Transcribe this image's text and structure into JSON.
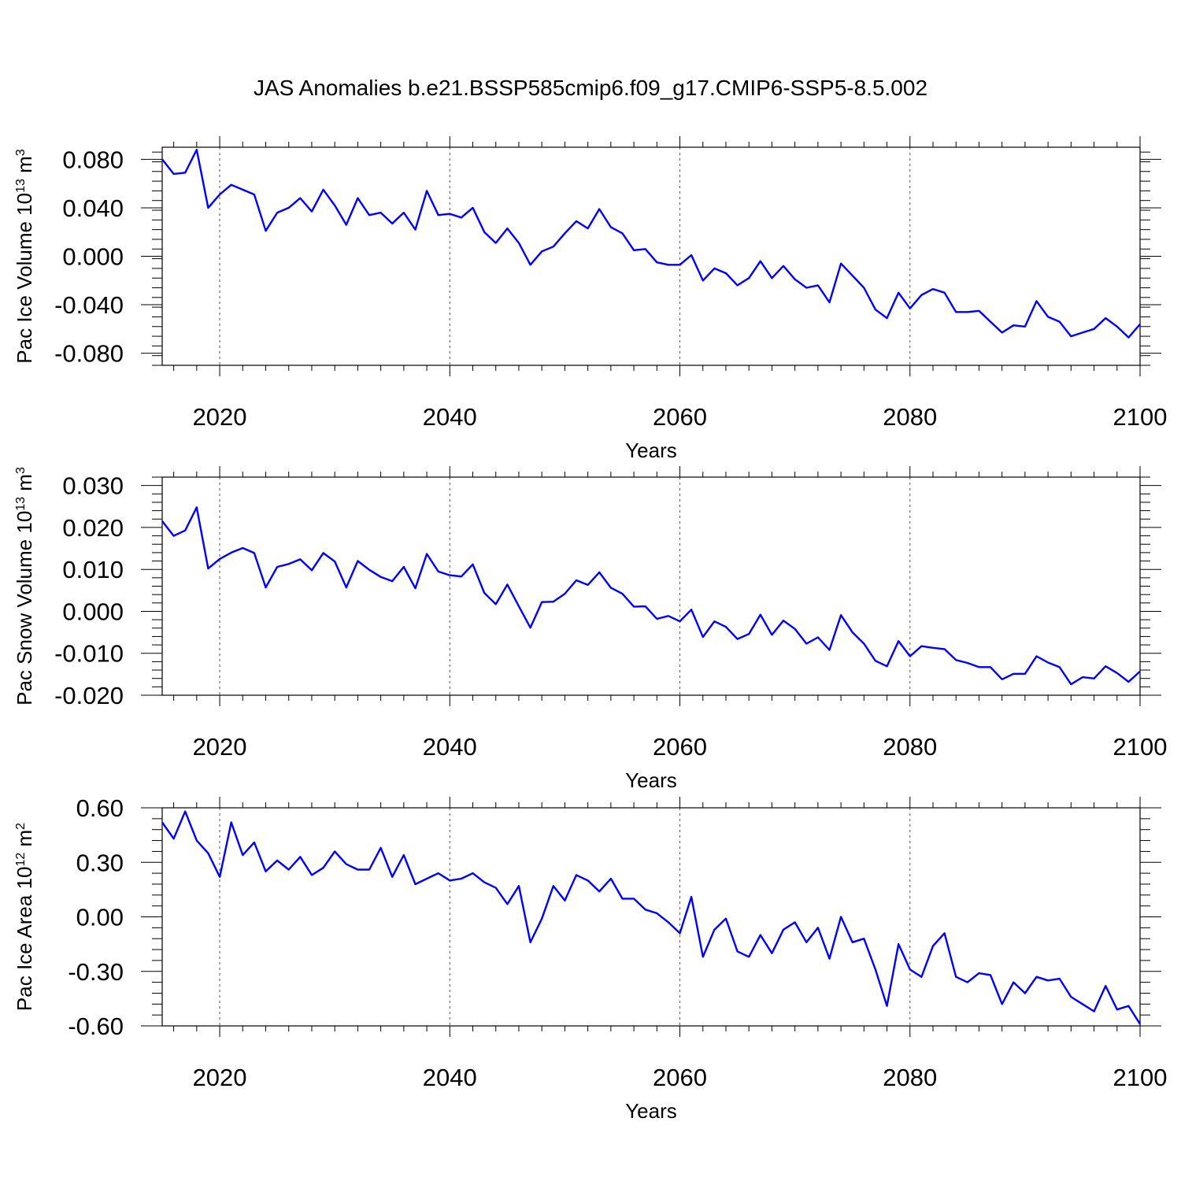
{
  "title": "JAS Anomalies b.e21.BSSP585cmip6.f09_g17.CMIP6-SSP5-8.5.002",
  "line_color": "#0000ff",
  "chart_data": [
    {
      "type": "line",
      "ylabel": {
        "text": "Pac Ice Volume 10",
        "sup": "13",
        "unit": " m",
        "unitsup": "3"
      },
      "xlabel": "Years",
      "xlim": [
        2015,
        2100
      ],
      "ylim": [
        -0.09,
        0.09
      ],
      "yticks": [
        -0.08,
        -0.04,
        0.0,
        0.04,
        0.08
      ],
      "ytick_labels": [
        "-0.080",
        "-0.040",
        "0.000",
        "0.040",
        "0.080"
      ],
      "xticks": [
        2020,
        2040,
        2060,
        2080,
        2100
      ],
      "xtick_labels": [
        "2020",
        "2040",
        "2060",
        "2080",
        "2100"
      ],
      "x_start": 2015,
      "values": [
        0.08,
        0.068,
        0.069,
        0.088,
        0.04,
        0.051,
        0.059,
        0.055,
        0.051,
        0.021,
        0.036,
        0.04,
        0.048,
        0.037,
        0.055,
        0.042,
        0.026,
        0.048,
        0.034,
        0.036,
        0.027,
        0.036,
        0.022,
        0.054,
        0.034,
        0.035,
        0.032,
        0.04,
        0.02,
        0.011,
        0.023,
        0.011,
        -0.007,
        0.004,
        0.008,
        0.019,
        0.029,
        0.023,
        0.039,
        0.024,
        0.019,
        0.005,
        0.006,
        -0.005,
        -0.007,
        -0.007,
        0.001,
        -0.02,
        -0.01,
        -0.014,
        -0.024,
        -0.018,
        -0.004,
        -0.018,
        -0.008,
        -0.019,
        -0.026,
        -0.024,
        -0.038,
        -0.006,
        -0.016,
        -0.026,
        -0.044,
        -0.051,
        -0.03,
        -0.043,
        -0.032,
        -0.027,
        -0.03,
        -0.046,
        -0.046,
        -0.045,
        -0.054,
        -0.063,
        -0.057,
        -0.058,
        -0.037,
        -0.05,
        -0.054,
        -0.066,
        -0.063,
        -0.06,
        -0.051,
        -0.058,
        -0.067,
        -0.056
      ]
    },
    {
      "type": "line",
      "ylabel": {
        "text": "Pac Snow Volume 10",
        "sup": "13",
        "unit": " m",
        "unitsup": "3"
      },
      "xlabel": "Years",
      "xlim": [
        2015,
        2100
      ],
      "ylim": [
        -0.02,
        0.032
      ],
      "yticks": [
        -0.02,
        -0.01,
        0.0,
        0.01,
        0.02,
        0.03
      ],
      "ytick_labels": [
        "-0.020",
        "-0.010",
        "0.000",
        "0.010",
        "0.020",
        "0.030"
      ],
      "xticks": [
        2020,
        2040,
        2060,
        2080,
        2100
      ],
      "xtick_labels": [
        "2020",
        "2040",
        "2060",
        "2080",
        "2100"
      ],
      "x_start": 2015,
      "values": [
        0.0215,
        0.018,
        0.0193,
        0.0248,
        0.0102,
        0.0125,
        0.014,
        0.0151,
        0.0139,
        0.0057,
        0.0106,
        0.0113,
        0.0124,
        0.0098,
        0.0139,
        0.0119,
        0.0057,
        0.012,
        0.0099,
        0.0082,
        0.0072,
        0.0106,
        0.0055,
        0.0137,
        0.0095,
        0.0086,
        0.0083,
        0.0112,
        0.0044,
        0.0017,
        0.0064,
        0.0012,
        -0.0039,
        0.0022,
        0.0023,
        0.0042,
        0.0074,
        0.0063,
        0.0093,
        0.0056,
        0.0042,
        0.0011,
        0.0012,
        -0.0018,
        -0.0011,
        -0.0024,
        0.0004,
        -0.0061,
        -0.0024,
        -0.0037,
        -0.0066,
        -0.0054,
        -0.0008,
        -0.0056,
        -0.0022,
        -0.0042,
        -0.0077,
        -0.0062,
        -0.0092,
        -0.0009,
        -0.005,
        -0.0077,
        -0.0118,
        -0.0131,
        -0.0071,
        -0.0107,
        -0.0083,
        -0.0087,
        -0.009,
        -0.0116,
        -0.0123,
        -0.0133,
        -0.0133,
        -0.0162,
        -0.0149,
        -0.0149,
        -0.0107,
        -0.0122,
        -0.0133,
        -0.0174,
        -0.0157,
        -0.016,
        -0.0131,
        -0.0147,
        -0.0168,
        -0.0143
      ]
    },
    {
      "type": "line",
      "ylabel": {
        "text": "Pac Ice Area 10",
        "sup": "12",
        "unit": " m",
        "unitsup": "2"
      },
      "xlabel": "Years",
      "xlim": [
        2015,
        2100
      ],
      "ylim": [
        -0.6,
        0.6
      ],
      "yticks": [
        -0.6,
        -0.3,
        0.0,
        0.3,
        0.6
      ],
      "ytick_labels": [
        "-0.60",
        "-0.30",
        "0.00",
        "0.30",
        "0.60"
      ],
      "xticks": [
        2020,
        2040,
        2060,
        2080,
        2100
      ],
      "xtick_labels": [
        "2020",
        "2040",
        "2060",
        "2080",
        "2100"
      ],
      "x_start": 2015,
      "values": [
        0.52,
        0.43,
        0.58,
        0.42,
        0.35,
        0.22,
        0.52,
        0.34,
        0.41,
        0.25,
        0.31,
        0.26,
        0.33,
        0.23,
        0.27,
        0.36,
        0.29,
        0.26,
        0.26,
        0.38,
        0.22,
        0.34,
        0.18,
        0.21,
        0.24,
        0.2,
        0.21,
        0.24,
        0.19,
        0.16,
        0.07,
        0.17,
        -0.14,
        -0.01,
        0.17,
        0.09,
        0.23,
        0.2,
        0.14,
        0.21,
        0.1,
        0.1,
        0.04,
        0.02,
        -0.03,
        -0.09,
        0.11,
        -0.22,
        -0.07,
        -0.01,
        -0.19,
        -0.22,
        -0.1,
        -0.2,
        -0.07,
        -0.03,
        -0.14,
        -0.06,
        -0.23,
        0.0,
        -0.14,
        -0.12,
        -0.29,
        -0.49,
        -0.15,
        -0.29,
        -0.33,
        -0.16,
        -0.09,
        -0.33,
        -0.36,
        -0.31,
        -0.32,
        -0.48,
        -0.36,
        -0.42,
        -0.33,
        -0.35,
        -0.34,
        -0.44,
        -0.48,
        -0.52,
        -0.38,
        -0.51,
        -0.49,
        -0.59
      ]
    }
  ]
}
